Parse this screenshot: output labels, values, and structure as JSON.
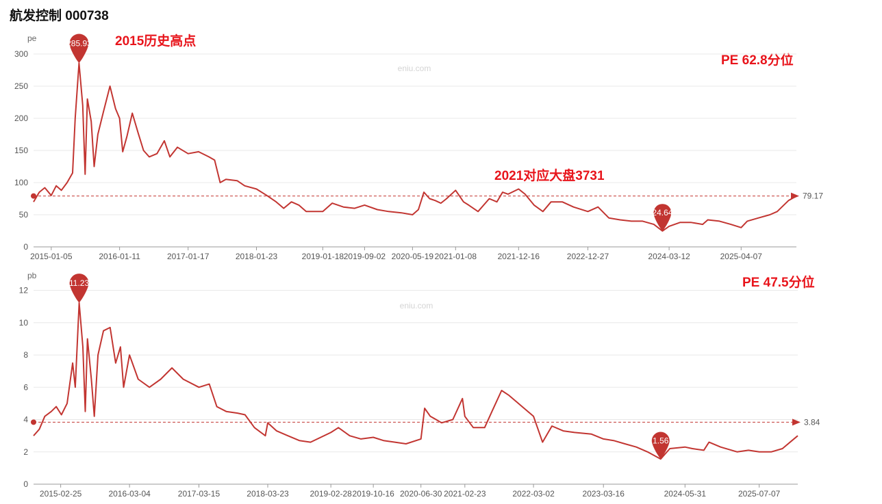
{
  "header": {
    "title": "航发控制 000738"
  },
  "annotations": {
    "high_2015": "2015历史高点",
    "pe_percentile": "PE 62.8分位",
    "market_2021": "2021对应大盘3731",
    "pb_percentile": "PE 47.5分位"
  },
  "colors": {
    "line": "#c23531",
    "annotation": "#e8141b",
    "grid": "#e8e8e8",
    "axis": "#999999"
  },
  "chart_data": [
    {
      "type": "line",
      "unit_label": "pe",
      "watermark": "eniu.com",
      "ylim": [
        0,
        300
      ],
      "yticks": [
        0,
        50,
        100,
        150,
        200,
        250,
        300
      ],
      "xlim": [
        "2014-10-01",
        "2026-02-01"
      ],
      "x_tick_labels": [
        "2015-01-05",
        "2016-01-11",
        "2017-01-17",
        "2018-01-23",
        "2019-01-18",
        "2019-09-02",
        "2020-05-19",
        "2021-01-08",
        "2021-12-16",
        "2022-12-27",
        "2024-03-12",
        "2025-04-07"
      ],
      "x_tick_dates": [
        "2015-01-05",
        "2016-01-11",
        "2017-01-17",
        "2018-01-23",
        "2019-01-18",
        "2019-09-02",
        "2020-05-19",
        "2021-01-08",
        "2021-12-16",
        "2022-12-27",
        "2024-03-12",
        "2025-04-07"
      ],
      "series": [
        {
          "points": [
            [
              "2014-10-01",
              70
            ],
            [
              "2014-11-01",
              85
            ],
            [
              "2014-12-01",
              92
            ],
            [
              "2015-01-05",
              80
            ],
            [
              "2015-02-01",
              95
            ],
            [
              "2015-03-01",
              88
            ],
            [
              "2015-04-01",
              100
            ],
            [
              "2015-05-01",
              115
            ],
            [
              "2015-05-15",
              200
            ],
            [
              "2015-06-05",
              285.93
            ],
            [
              "2015-06-25",
              220
            ],
            [
              "2015-07-08",
              113
            ],
            [
              "2015-07-20",
              230
            ],
            [
              "2015-08-10",
              195
            ],
            [
              "2015-08-26",
              125
            ],
            [
              "2015-09-15",
              175
            ],
            [
              "2015-10-15",
              210
            ],
            [
              "2015-11-20",
              250
            ],
            [
              "2015-12-20",
              215
            ],
            [
              "2016-01-11",
              200
            ],
            [
              "2016-01-28",
              148
            ],
            [
              "2016-02-20",
              172
            ],
            [
              "2016-03-20",
              208
            ],
            [
              "2016-04-20",
              178
            ],
            [
              "2016-05-20",
              150
            ],
            [
              "2016-06-20",
              140
            ],
            [
              "2016-08-01",
              145
            ],
            [
              "2016-09-10",
              165
            ],
            [
              "2016-10-10",
              140
            ],
            [
              "2016-11-20",
              155
            ],
            [
              "2017-01-17",
              145
            ],
            [
              "2017-03-15",
              148
            ],
            [
              "2017-05-10",
              140
            ],
            [
              "2017-06-10",
              135
            ],
            [
              "2017-07-10",
              100
            ],
            [
              "2017-08-10",
              105
            ],
            [
              "2017-10-10",
              103
            ],
            [
              "2017-11-20",
              95
            ],
            [
              "2018-01-23",
              90
            ],
            [
              "2018-03-20",
              80
            ],
            [
              "2018-05-10",
              70
            ],
            [
              "2018-06-20",
              60
            ],
            [
              "2018-08-01",
              70
            ],
            [
              "2018-09-10",
              65
            ],
            [
              "2018-10-20",
              55
            ],
            [
              "2019-01-18",
              55
            ],
            [
              "2019-03-10",
              68
            ],
            [
              "2019-05-10",
              62
            ],
            [
              "2019-07-10",
              60
            ],
            [
              "2019-09-02",
              65
            ],
            [
              "2019-11-10",
              58
            ],
            [
              "2020-01-10",
              55
            ],
            [
              "2020-03-20",
              53
            ],
            [
              "2020-05-19",
              50
            ],
            [
              "2020-06-20",
              58
            ],
            [
              "2020-07-20",
              85
            ],
            [
              "2020-08-20",
              75
            ],
            [
              "2020-09-20",
              72
            ],
            [
              "2020-10-20",
              68
            ],
            [
              "2020-11-20",
              75
            ],
            [
              "2021-01-08",
              88
            ],
            [
              "2021-02-20",
              70
            ],
            [
              "2021-03-20",
              65
            ],
            [
              "2021-05-10",
              55
            ],
            [
              "2021-07-10",
              75
            ],
            [
              "2021-08-20",
              70
            ],
            [
              "2021-09-20",
              85
            ],
            [
              "2021-10-20",
              82
            ],
            [
              "2021-12-16",
              90
            ],
            [
              "2022-01-20",
              82
            ],
            [
              "2022-03-10",
              65
            ],
            [
              "2022-04-27",
              55
            ],
            [
              "2022-06-10",
              70
            ],
            [
              "2022-08-10",
              70
            ],
            [
              "2022-10-10",
              62
            ],
            [
              "2022-12-27",
              55
            ],
            [
              "2023-02-20",
              62
            ],
            [
              "2023-04-20",
              45
            ],
            [
              "2023-06-20",
              42
            ],
            [
              "2023-08-20",
              40
            ],
            [
              "2023-10-20",
              40
            ],
            [
              "2023-12-20",
              35
            ],
            [
              "2024-02-05",
              24.64
            ],
            [
              "2024-03-12",
              32
            ],
            [
              "2024-05-10",
              38
            ],
            [
              "2024-07-10",
              38
            ],
            [
              "2024-09-10",
              35
            ],
            [
              "2024-10-08",
              42
            ],
            [
              "2024-12-10",
              40
            ],
            [
              "2025-02-10",
              35
            ],
            [
              "2025-04-07",
              30
            ],
            [
              "2025-05-10",
              40
            ],
            [
              "2025-07-10",
              45
            ],
            [
              "2025-09-10",
              50
            ],
            [
              "2025-10-20",
              55
            ],
            [
              "2025-12-20",
              72
            ],
            [
              "2026-02-01",
              79
            ]
          ]
        }
      ],
      "max_point": {
        "date": "2015-06-05",
        "value": 285.93,
        "label": "285.93"
      },
      "min_point": {
        "date": "2024-02-05",
        "value": 24.64,
        "label": "24.64"
      },
      "reference_line": {
        "value": 79.17,
        "label": "79.17"
      }
    },
    {
      "type": "line",
      "unit_label": "pb",
      "watermark": "eniu.com",
      "ylim": [
        0,
        13
      ],
      "yticks": [
        0,
        2,
        4,
        6,
        8,
        10,
        12
      ],
      "xlim": [
        "2014-10-01",
        "2026-02-01"
      ],
      "x_tick_labels": [
        "2015-02-25",
        "2016-03-04",
        "2017-03-15",
        "2018-03-23",
        "2019-02-28",
        "2019-10-16",
        "2020-06-30",
        "2021-02-23",
        "2022-03-02",
        "2023-03-16",
        "2024-05-31",
        "2025-07-07"
      ],
      "x_tick_dates": [
        "2015-02-25",
        "2016-03-04",
        "2017-03-15",
        "2018-03-23",
        "2019-02-28",
        "2019-10-16",
        "2020-06-30",
        "2021-02-23",
        "2022-03-02",
        "2023-03-16",
        "2024-05-31",
        "2025-07-07"
      ],
      "series": [
        {
          "points": [
            [
              "2014-10-01",
              3.0
            ],
            [
              "2014-11-01",
              3.4
            ],
            [
              "2014-12-01",
              4.2
            ],
            [
              "2015-01-05",
              4.5
            ],
            [
              "2015-02-01",
              4.8
            ],
            [
              "2015-03-01",
              4.3
            ],
            [
              "2015-04-01",
              5.0
            ],
            [
              "2015-05-01",
              7.5
            ],
            [
              "2015-05-15",
              6.0
            ],
            [
              "2015-06-05",
              11.23
            ],
            [
              "2015-06-25",
              8.5
            ],
            [
              "2015-07-08",
              4.5
            ],
            [
              "2015-07-20",
              9.0
            ],
            [
              "2015-08-10",
              6.5
            ],
            [
              "2015-08-26",
              4.2
            ],
            [
              "2015-09-15",
              8.0
            ],
            [
              "2015-10-15",
              9.5
            ],
            [
              "2015-11-20",
              9.7
            ],
            [
              "2015-12-20",
              7.5
            ],
            [
              "2016-01-15",
              8.5
            ],
            [
              "2016-02-01",
              6.0
            ],
            [
              "2016-03-04",
              8.0
            ],
            [
              "2016-04-20",
              6.5
            ],
            [
              "2016-06-20",
              6.0
            ],
            [
              "2016-08-20",
              6.5
            ],
            [
              "2016-10-20",
              7.2
            ],
            [
              "2016-12-20",
              6.5
            ],
            [
              "2017-03-15",
              6.0
            ],
            [
              "2017-05-10",
              6.2
            ],
            [
              "2017-06-20",
              4.8
            ],
            [
              "2017-08-10",
              4.5
            ],
            [
              "2017-10-10",
              4.4
            ],
            [
              "2017-11-20",
              4.3
            ],
            [
              "2018-01-10",
              3.5
            ],
            [
              "2018-03-10",
              3.0
            ],
            [
              "2018-03-23",
              3.8
            ],
            [
              "2018-05-10",
              3.3
            ],
            [
              "2018-07-10",
              3.0
            ],
            [
              "2018-09-10",
              2.7
            ],
            [
              "2018-11-10",
              2.6
            ],
            [
              "2019-02-28",
              3.2
            ],
            [
              "2019-04-10",
              3.5
            ],
            [
              "2019-06-10",
              3.0
            ],
            [
              "2019-08-10",
              2.8
            ],
            [
              "2019-10-16",
              2.9
            ],
            [
              "2019-12-10",
              2.7
            ],
            [
              "2020-02-10",
              2.6
            ],
            [
              "2020-04-10",
              2.5
            ],
            [
              "2020-06-30",
              2.8
            ],
            [
              "2020-07-20",
              4.7
            ],
            [
              "2020-08-20",
              4.2
            ],
            [
              "2020-09-20",
              4.0
            ],
            [
              "2020-10-20",
              3.8
            ],
            [
              "2020-12-20",
              4.0
            ],
            [
              "2021-02-10",
              5.3
            ],
            [
              "2021-02-23",
              4.2
            ],
            [
              "2021-04-10",
              3.5
            ],
            [
              "2021-06-10",
              3.5
            ],
            [
              "2021-07-20",
              4.5
            ],
            [
              "2021-09-10",
              5.8
            ],
            [
              "2021-10-20",
              5.5
            ],
            [
              "2021-12-10",
              5.0
            ],
            [
              "2022-03-02",
              4.2
            ],
            [
              "2022-04-20",
              2.6
            ],
            [
              "2022-06-10",
              3.6
            ],
            [
              "2022-08-10",
              3.3
            ],
            [
              "2022-10-10",
              3.2
            ],
            [
              "2023-01-10",
              3.1
            ],
            [
              "2023-03-16",
              2.8
            ],
            [
              "2023-05-10",
              2.7
            ],
            [
              "2023-07-10",
              2.5
            ],
            [
              "2023-09-10",
              2.3
            ],
            [
              "2023-11-10",
              2.0
            ],
            [
              "2024-01-20",
              1.56
            ],
            [
              "2024-03-10",
              2.2
            ],
            [
              "2024-05-31",
              2.3
            ],
            [
              "2024-07-10",
              2.2
            ],
            [
              "2024-09-10",
              2.1
            ],
            [
              "2024-10-08",
              2.6
            ],
            [
              "2024-12-10",
              2.3
            ],
            [
              "2025-03-10",
              2.0
            ],
            [
              "2025-05-10",
              2.1
            ],
            [
              "2025-07-07",
              2.0
            ],
            [
              "2025-09-10",
              2.0
            ],
            [
              "2025-11-10",
              2.2
            ],
            [
              "2026-01-01",
              2.7
            ],
            [
              "2026-02-01",
              3.0
            ]
          ]
        }
      ],
      "max_point": {
        "date": "2015-06-05",
        "value": 11.23,
        "label": "11.23"
      },
      "min_point": {
        "date": "2024-01-20",
        "value": 1.56,
        "label": "1.56"
      },
      "reference_line": {
        "value": 3.84,
        "label": "3.84"
      }
    }
  ]
}
